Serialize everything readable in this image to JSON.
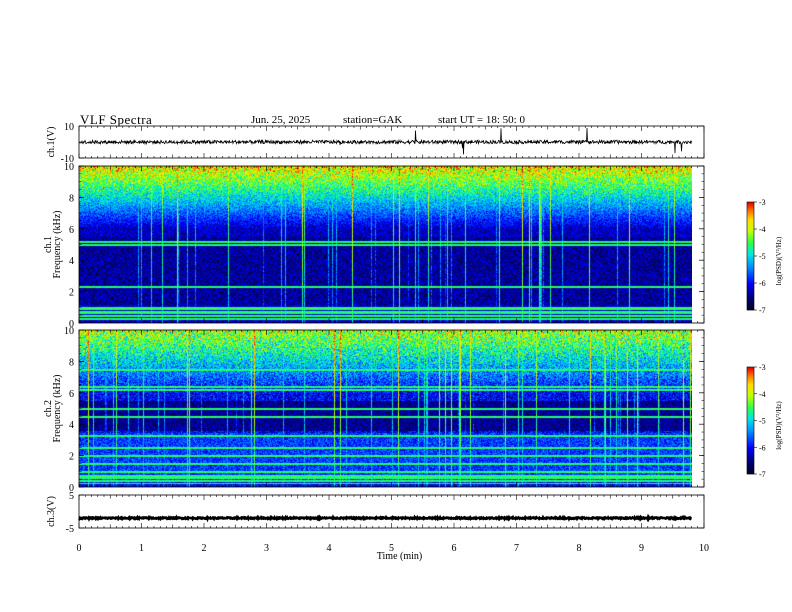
{
  "header": {
    "title": "VLF  Spectra",
    "date": "Jun. 25, 2025",
    "station": "station=GAK",
    "start": "start  UT =   18: 50: 0"
  },
  "chart_data": [
    {
      "type": "line",
      "name": "ch1-waveform",
      "ylabel": "ch.1(V)",
      "ylim": [
        -10,
        10
      ],
      "yticks": [
        "10",
        "-10"
      ],
      "xlim": [
        0,
        10
      ],
      "baseline": 0,
      "x_end": 9.8
    },
    {
      "type": "heatmap",
      "name": "ch1-spectrogram",
      "ylabel": "ch.1\nFrequency (kHz)",
      "ylabel_top": "ch.1",
      "ylabel_bottom": "Frequency  (kHz)",
      "ylim": [
        0,
        10
      ],
      "yticks": [
        "0",
        "2",
        "4",
        "6",
        "8",
        "10"
      ],
      "xlim": [
        0,
        10
      ],
      "x_end": 9.8,
      "colorbar": {
        "label": "log(PSD)(V²/Hz)",
        "range": [
          -7,
          -3
        ],
        "ticks": [
          "-3",
          "-4",
          "-5",
          "-6",
          "-7"
        ]
      }
    },
    {
      "type": "heatmap",
      "name": "ch2-spectrogram",
      "ylabel": "ch.2\nFrequency (kHz)",
      "ylabel_top": "ch.2",
      "ylabel_bottom": "Frequency  (kHz)",
      "ylim": [
        0,
        10
      ],
      "yticks": [
        "0",
        "2",
        "4",
        "6",
        "8",
        "10"
      ],
      "xlim": [
        0,
        10
      ],
      "x_end": 9.8,
      "colorbar": {
        "label": "log(PSD)(V²/Hz)",
        "range": [
          -7,
          -3
        ],
        "ticks": [
          "-3",
          "-4",
          "-5",
          "-6",
          "-7"
        ]
      }
    },
    {
      "type": "line",
      "name": "ch3-waveform",
      "ylabel": "ch.3(V)",
      "ylim": [
        -5,
        5
      ],
      "yticks": [
        "5",
        "-5"
      ],
      "xlim": [
        0,
        10
      ],
      "baseline": -2,
      "x_end": 9.8
    }
  ],
  "xaxis": {
    "label": "Time  (min)",
    "ticks": [
      "0",
      "1",
      "2",
      "3",
      "4",
      "5",
      "6",
      "7",
      "8",
      "9",
      "10"
    ]
  },
  "colors": {
    "cmap": [
      "#000044",
      "#0000ff",
      "#00aaff",
      "#00ffcc",
      "#55ff00",
      "#ffff00",
      "#ff8800",
      "#ff0000",
      "#ffffff"
    ]
  }
}
